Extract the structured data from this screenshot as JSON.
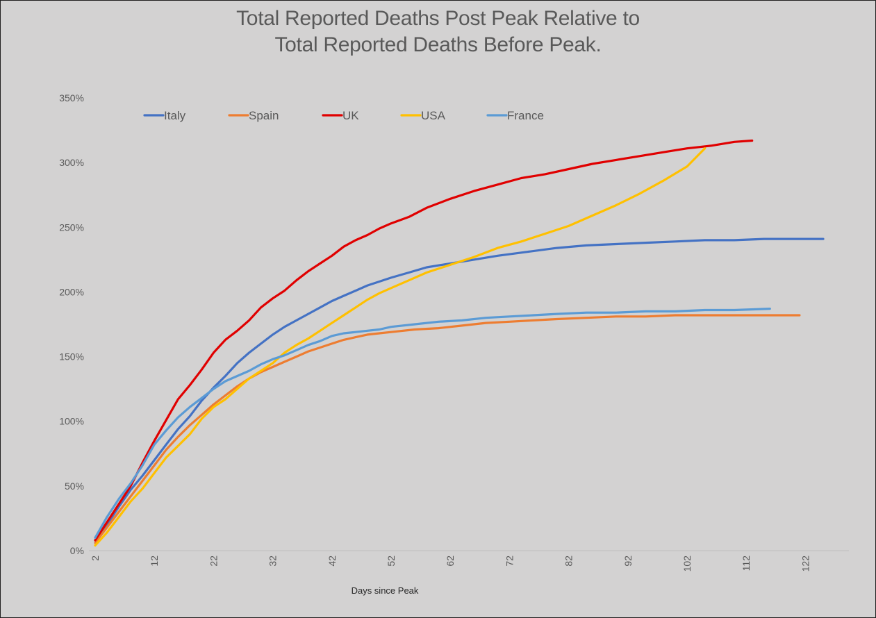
{
  "chart_data": {
    "type": "line",
    "title": "Total Reported Deaths Post Peak Relative to",
    "subtitle": "Total Reported Deaths Before Peak.",
    "xlabel": "Days since Peak",
    "ylabel": "",
    "xlim": [
      2,
      127
    ],
    "ylim": [
      0,
      350
    ],
    "yticks": [
      "0%",
      "50%",
      "100%",
      "150%",
      "200%",
      "250%",
      "300%",
      "350%"
    ],
    "xticks": [
      "2",
      "12",
      "22",
      "32",
      "42",
      "52",
      "62",
      "72",
      "82",
      "92",
      "102",
      "112",
      "122"
    ],
    "grid": false,
    "legend_position": "top-left",
    "series": [
      {
        "name": "Italy",
        "color": "#4472c4",
        "points": [
          [
            2,
            8
          ],
          [
            4,
            20
          ],
          [
            6,
            34
          ],
          [
            8,
            47
          ],
          [
            10,
            58
          ],
          [
            12,
            70
          ],
          [
            14,
            82
          ],
          [
            16,
            94
          ],
          [
            18,
            104
          ],
          [
            20,
            116
          ],
          [
            22,
            126
          ],
          [
            24,
            135
          ],
          [
            26,
            145
          ],
          [
            28,
            153
          ],
          [
            30,
            160
          ],
          [
            32,
            167
          ],
          [
            34,
            173
          ],
          [
            36,
            178
          ],
          [
            38,
            183
          ],
          [
            40,
            188
          ],
          [
            42,
            193
          ],
          [
            44,
            197
          ],
          [
            46,
            201
          ],
          [
            48,
            205
          ],
          [
            50,
            208
          ],
          [
            52,
            211
          ],
          [
            55,
            215
          ],
          [
            58,
            219
          ],
          [
            62,
            222
          ],
          [
            66,
            225
          ],
          [
            70,
            228
          ],
          [
            75,
            231
          ],
          [
            80,
            234
          ],
          [
            85,
            236
          ],
          [
            90,
            237
          ],
          [
            95,
            238
          ],
          [
            100,
            239
          ],
          [
            105,
            240
          ],
          [
            110,
            240
          ],
          [
            115,
            241
          ],
          [
            120,
            241
          ],
          [
            125,
            241
          ]
        ]
      },
      {
        "name": "Spain",
        "color": "#ed7d31",
        "points": [
          [
            2,
            6
          ],
          [
            4,
            18
          ],
          [
            6,
            30
          ],
          [
            8,
            42
          ],
          [
            10,
            54
          ],
          [
            12,
            66
          ],
          [
            14,
            78
          ],
          [
            16,
            88
          ],
          [
            18,
            97
          ],
          [
            20,
            105
          ],
          [
            22,
            113
          ],
          [
            24,
            120
          ],
          [
            26,
            127
          ],
          [
            28,
            133
          ],
          [
            30,
            138
          ],
          [
            32,
            142
          ],
          [
            34,
            146
          ],
          [
            36,
            150
          ],
          [
            38,
            154
          ],
          [
            40,
            157
          ],
          [
            42,
            160
          ],
          [
            44,
            163
          ],
          [
            46,
            165
          ],
          [
            48,
            167
          ],
          [
            50,
            168
          ],
          [
            52,
            169
          ],
          [
            56,
            171
          ],
          [
            60,
            172
          ],
          [
            64,
            174
          ],
          [
            68,
            176
          ],
          [
            72,
            177
          ],
          [
            76,
            178
          ],
          [
            80,
            179
          ],
          [
            85,
            180
          ],
          [
            90,
            181
          ],
          [
            95,
            181
          ],
          [
            100,
            182
          ],
          [
            105,
            182
          ],
          [
            110,
            182
          ],
          [
            115,
            182
          ],
          [
            121,
            182
          ]
        ]
      },
      {
        "name": "UK",
        "color": "#e00000",
        "points": [
          [
            2,
            8
          ],
          [
            4,
            22
          ],
          [
            6,
            36
          ],
          [
            8,
            50
          ],
          [
            10,
            68
          ],
          [
            12,
            85
          ],
          [
            14,
            101
          ],
          [
            16,
            117
          ],
          [
            18,
            128
          ],
          [
            20,
            140
          ],
          [
            22,
            153
          ],
          [
            24,
            163
          ],
          [
            26,
            170
          ],
          [
            28,
            178
          ],
          [
            30,
            188
          ],
          [
            32,
            195
          ],
          [
            34,
            201
          ],
          [
            36,
            209
          ],
          [
            38,
            216
          ],
          [
            40,
            222
          ],
          [
            42,
            228
          ],
          [
            44,
            235
          ],
          [
            46,
            240
          ],
          [
            48,
            244
          ],
          [
            50,
            249
          ],
          [
            52,
            253
          ],
          [
            55,
            258
          ],
          [
            58,
            265
          ],
          [
            62,
            272
          ],
          [
            66,
            278
          ],
          [
            70,
            283
          ],
          [
            74,
            288
          ],
          [
            78,
            291
          ],
          [
            82,
            295
          ],
          [
            86,
            299
          ],
          [
            90,
            302
          ],
          [
            94,
            305
          ],
          [
            98,
            308
          ],
          [
            102,
            311
          ],
          [
            106,
            313
          ],
          [
            110,
            316
          ],
          [
            113,
            317
          ]
        ]
      },
      {
        "name": "USA",
        "color": "#ffc000",
        "points": [
          [
            2,
            4
          ],
          [
            4,
            14
          ],
          [
            6,
            26
          ],
          [
            8,
            38
          ],
          [
            10,
            48
          ],
          [
            12,
            60
          ],
          [
            14,
            72
          ],
          [
            16,
            81
          ],
          [
            18,
            90
          ],
          [
            20,
            102
          ],
          [
            22,
            111
          ],
          [
            24,
            117
          ],
          [
            26,
            125
          ],
          [
            28,
            133
          ],
          [
            30,
            139
          ],
          [
            32,
            145
          ],
          [
            34,
            153
          ],
          [
            36,
            159
          ],
          [
            38,
            164
          ],
          [
            40,
            170
          ],
          [
            42,
            176
          ],
          [
            44,
            182
          ],
          [
            46,
            188
          ],
          [
            48,
            194
          ],
          [
            50,
            199
          ],
          [
            52,
            203
          ],
          [
            55,
            209
          ],
          [
            58,
            215
          ],
          [
            62,
            221
          ],
          [
            66,
            227
          ],
          [
            70,
            234
          ],
          [
            74,
            239
          ],
          [
            78,
            245
          ],
          [
            82,
            251
          ],
          [
            86,
            259
          ],
          [
            90,
            267
          ],
          [
            94,
            276
          ],
          [
            98,
            286
          ],
          [
            102,
            297
          ],
          [
            105,
            311
          ]
        ]
      },
      {
        "name": "France",
        "color": "#5b9bd5",
        "points": [
          [
            2,
            10
          ],
          [
            4,
            26
          ],
          [
            6,
            40
          ],
          [
            8,
            52
          ],
          [
            10,
            66
          ],
          [
            12,
            82
          ],
          [
            14,
            93
          ],
          [
            16,
            103
          ],
          [
            18,
            111
          ],
          [
            20,
            118
          ],
          [
            22,
            125
          ],
          [
            24,
            131
          ],
          [
            26,
            135
          ],
          [
            28,
            139
          ],
          [
            30,
            144
          ],
          [
            32,
            148
          ],
          [
            34,
            151
          ],
          [
            36,
            155
          ],
          [
            38,
            159
          ],
          [
            40,
            162
          ],
          [
            42,
            166
          ],
          [
            44,
            168
          ],
          [
            46,
            169
          ],
          [
            48,
            170
          ],
          [
            50,
            171
          ],
          [
            52,
            173
          ],
          [
            56,
            175
          ],
          [
            60,
            177
          ],
          [
            64,
            178
          ],
          [
            68,
            180
          ],
          [
            72,
            181
          ],
          [
            76,
            182
          ],
          [
            80,
            183
          ],
          [
            85,
            184
          ],
          [
            90,
            184
          ],
          [
            95,
            185
          ],
          [
            100,
            185
          ],
          [
            105,
            186
          ],
          [
            110,
            186
          ],
          [
            116,
            187
          ]
        ]
      }
    ]
  }
}
